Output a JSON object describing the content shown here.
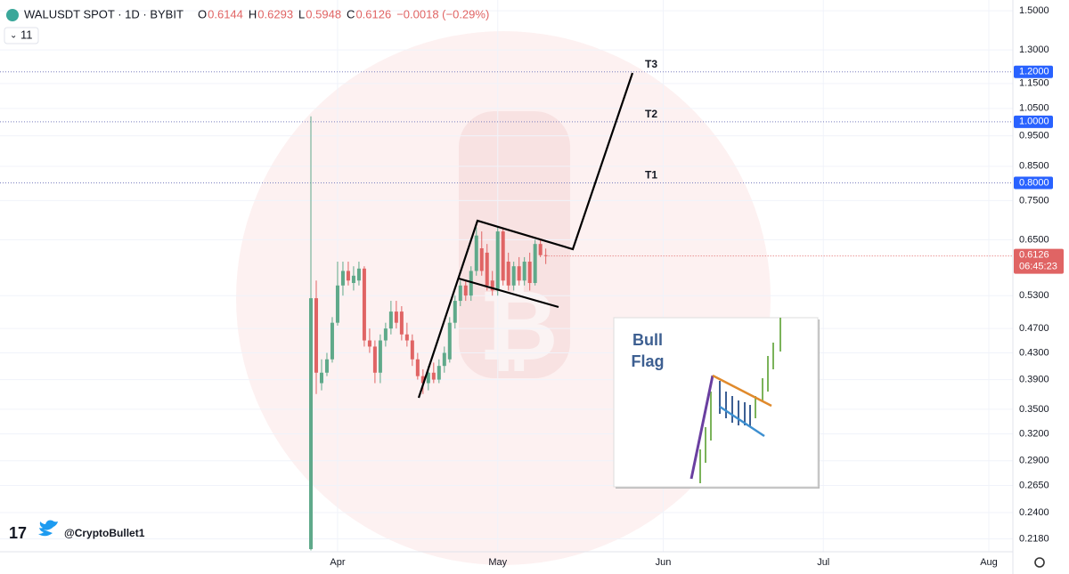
{
  "chart_data": {
    "type": "candlestick",
    "title": "WALUSDT SPOT · 1D · BYBIT",
    "ohlc_labels": [
      "O",
      "H",
      "L",
      "C"
    ],
    "change": "−0.0018 (−0.29%)",
    "indicator_count": 11,
    "countdown": "06:45:23",
    "author": "@CryptoBullet1",
    "inset": {
      "title_lines": [
        "Bull",
        "Flag"
      ]
    },
    "log_scale": true,
    "grid": true,
    "up_color": "#5fa98a",
    "down_color": "#e06464",
    "level_color": "#2962ff",
    "ylim": [
      0.208,
      1.56
    ],
    "yticks": [
      {
        "value": 1.5,
        "label": "1.5000"
      },
      {
        "value": 1.3,
        "label": "1.3000"
      },
      {
        "value": 1.15,
        "label": "1.1500"
      },
      {
        "value": 1.05,
        "label": "1.0500"
      },
      {
        "value": 0.95,
        "label": "0.9500"
      },
      {
        "value": 0.85,
        "label": "0.8500"
      },
      {
        "value": 0.75,
        "label": "0.7500"
      },
      {
        "value": 0.65,
        "label": "0.6500"
      },
      {
        "value": 0.53,
        "label": "0.5300"
      },
      {
        "value": 0.47,
        "label": "0.4700"
      },
      {
        "value": 0.43,
        "label": "0.4300"
      },
      {
        "value": 0.39,
        "label": "0.3900"
      },
      {
        "value": 0.35,
        "label": "0.3500"
      },
      {
        "value": 0.32,
        "label": "0.3200"
      },
      {
        "value": 0.29,
        "label": "0.2900"
      },
      {
        "value": 0.265,
        "label": "0.2650"
      },
      {
        "value": 0.24,
        "label": "0.2400"
      },
      {
        "value": 0.218,
        "label": "0.2180"
      }
    ],
    "levels": [
      {
        "name": "T3",
        "value": 1.2,
        "label": "1.2000"
      },
      {
        "name": "T2",
        "value": 1.0,
        "label": "1.0000"
      },
      {
        "name": "T1",
        "value": 0.8,
        "label": "0.8000"
      }
    ],
    "categories": [
      null,
      null,
      null,
      null,
      null,
      "Apr",
      null,
      null,
      null,
      null,
      null,
      null,
      null,
      null,
      null,
      null,
      null,
      null,
      null,
      null,
      null,
      null,
      null,
      null,
      null,
      null,
      null,
      null,
      null,
      null,
      null,
      null,
      null,
      null,
      null,
      "May",
      null,
      null,
      null,
      null,
      null,
      null,
      null,
      null,
      null,
      null,
      null,
      null,
      null,
      null,
      null,
      null,
      null,
      null,
      null,
      null,
      null,
      null,
      null,
      null,
      null,
      null,
      null,
      null,
      null,
      null,
      "Jun",
      null,
      null,
      null,
      null,
      null,
      null,
      null,
      null,
      null,
      null,
      null,
      null,
      null,
      null,
      null,
      null,
      null,
      null,
      null,
      null,
      null,
      null,
      null,
      null,
      null,
      null,
      null,
      null,
      null,
      "Jul",
      null,
      null,
      null,
      null,
      null,
      null,
      null,
      null,
      null,
      null,
      null,
      null,
      null,
      null,
      null,
      null,
      null,
      null,
      null,
      null,
      null,
      null,
      null,
      null,
      null,
      null,
      null,
      null,
      null,
      null,
      "Aug",
      null,
      null,
      null
    ],
    "open": [
      0.21,
      0.525,
      0.385,
      0.4,
      0.42,
      0.48,
      0.55,
      0.58,
      0.555,
      0.56,
      0.585,
      0.45,
      0.44,
      0.4,
      0.45,
      0.47,
      0.5,
      0.5,
      0.46,
      0.45,
      0.42,
      0.395,
      0.385,
      0.4,
      0.39,
      0.41,
      0.42,
      0.48,
      0.52,
      0.55,
      0.53,
      0.58,
      0.63,
      0.62,
      0.56,
      0.54,
      0.67,
      0.6,
      0.55,
      0.59,
      0.56,
      0.6,
      0.555,
      0.64,
      0.6144,
      null,
      null,
      null,
      null,
      null,
      null,
      null,
      null,
      null,
      null,
      null,
      null,
      null,
      null,
      null,
      null,
      null,
      null,
      null,
      null,
      null,
      null,
      null,
      null,
      null,
      null,
      null,
      null,
      null,
      null,
      null,
      null,
      null,
      null,
      null,
      null,
      null,
      null,
      null,
      null,
      null,
      null,
      null,
      null,
      null,
      null,
      null,
      null,
      null,
      null,
      null,
      null,
      null,
      null,
      null,
      null,
      null,
      null,
      null,
      null,
      null,
      null,
      null,
      null,
      null,
      null,
      null,
      null,
      null,
      null,
      null,
      null,
      null,
      null,
      null,
      null,
      null,
      null,
      null,
      null,
      null,
      null,
      null,
      null,
      null,
      null
    ],
    "high": [
      1.02,
      0.56,
      0.42,
      0.43,
      0.49,
      0.6,
      0.6,
      0.6,
      0.59,
      0.6,
      0.59,
      0.47,
      0.45,
      0.46,
      0.48,
      0.52,
      0.52,
      0.51,
      0.48,
      0.46,
      0.43,
      0.405,
      0.41,
      0.415,
      0.42,
      0.44,
      0.49,
      0.53,
      0.56,
      0.56,
      0.59,
      0.68,
      0.67,
      0.64,
      0.58,
      0.68,
      0.68,
      0.62,
      0.6,
      0.61,
      0.61,
      0.62,
      0.65,
      0.65,
      0.6293,
      null,
      null,
      null,
      null,
      null,
      null,
      null,
      null,
      null,
      null,
      null,
      null,
      null,
      null,
      null,
      null,
      null,
      null,
      null,
      null,
      null,
      null,
      null,
      null,
      null,
      null,
      null,
      null,
      null,
      null,
      null,
      null,
      null,
      null,
      null,
      null,
      null,
      null,
      null,
      null,
      null,
      null,
      null,
      null,
      null,
      null,
      null,
      null,
      null,
      null,
      null,
      null,
      null,
      null,
      null,
      null,
      null,
      null,
      null,
      null,
      null,
      null,
      null,
      null,
      null,
      null,
      null,
      null,
      null,
      null,
      null,
      null,
      null,
      null,
      null,
      null,
      null,
      null,
      null,
      null,
      null,
      null,
      null,
      null,
      null,
      null
    ],
    "low": [
      0.209,
      0.37,
      0.375,
      0.395,
      0.415,
      0.475,
      0.53,
      0.55,
      0.54,
      0.55,
      0.44,
      0.43,
      0.385,
      0.385,
      0.44,
      0.46,
      0.47,
      0.45,
      0.44,
      0.41,
      0.39,
      0.37,
      0.375,
      0.385,
      0.385,
      0.4,
      0.415,
      0.47,
      0.51,
      0.52,
      0.52,
      0.57,
      0.57,
      0.54,
      0.53,
      0.53,
      0.55,
      0.54,
      0.54,
      0.55,
      0.55,
      0.54,
      0.55,
      0.61,
      0.5948,
      null,
      null,
      null,
      null,
      null,
      null,
      null,
      null,
      null,
      null,
      null,
      null,
      null,
      null,
      null,
      null,
      null,
      null,
      null,
      null,
      null,
      null,
      null,
      null,
      null,
      null,
      null,
      null,
      null,
      null,
      null,
      null,
      null,
      null,
      null,
      null,
      null,
      null,
      null,
      null,
      null,
      null,
      null,
      null,
      null,
      null,
      null,
      null,
      null,
      null,
      null,
      null,
      null,
      null,
      null,
      null,
      null,
      null,
      null,
      null,
      null,
      null,
      null,
      null,
      null,
      null,
      null,
      null,
      null,
      null,
      null,
      null,
      null,
      null,
      null,
      null,
      null,
      null,
      null,
      null,
      null,
      null,
      null,
      null,
      null,
      null
    ],
    "close": [
      0.525,
      0.4,
      0.4,
      0.42,
      0.48,
      0.55,
      0.58,
      0.56,
      0.57,
      0.585,
      0.45,
      0.44,
      0.4,
      0.45,
      0.47,
      0.5,
      0.48,
      0.46,
      0.45,
      0.42,
      0.395,
      0.385,
      0.4,
      0.39,
      0.41,
      0.43,
      0.48,
      0.52,
      0.55,
      0.53,
      0.58,
      0.66,
      0.58,
      0.55,
      0.54,
      0.67,
      0.56,
      0.55,
      0.59,
      0.56,
      0.6,
      0.555,
      0.64,
      0.6144,
      0.6126,
      null,
      null,
      null,
      null,
      null,
      null,
      null,
      null,
      null,
      null,
      null,
      null,
      null,
      null,
      null,
      null,
      null,
      null,
      null,
      null,
      null,
      null,
      null,
      null,
      null,
      null,
      null,
      null,
      null,
      null,
      null,
      null,
      null,
      null,
      null,
      null,
      null,
      null,
      null,
      null,
      null,
      null,
      null,
      null,
      null,
      null,
      null,
      null,
      null,
      null,
      null,
      null,
      null,
      null,
      null,
      null,
      null,
      null,
      null,
      null,
      null,
      null,
      null,
      null,
      null,
      null,
      null,
      null,
      null,
      null,
      null,
      null,
      null,
      null,
      null,
      null,
      null,
      null,
      null,
      null,
      null,
      null,
      null,
      null,
      null,
      null
    ]
  }
}
